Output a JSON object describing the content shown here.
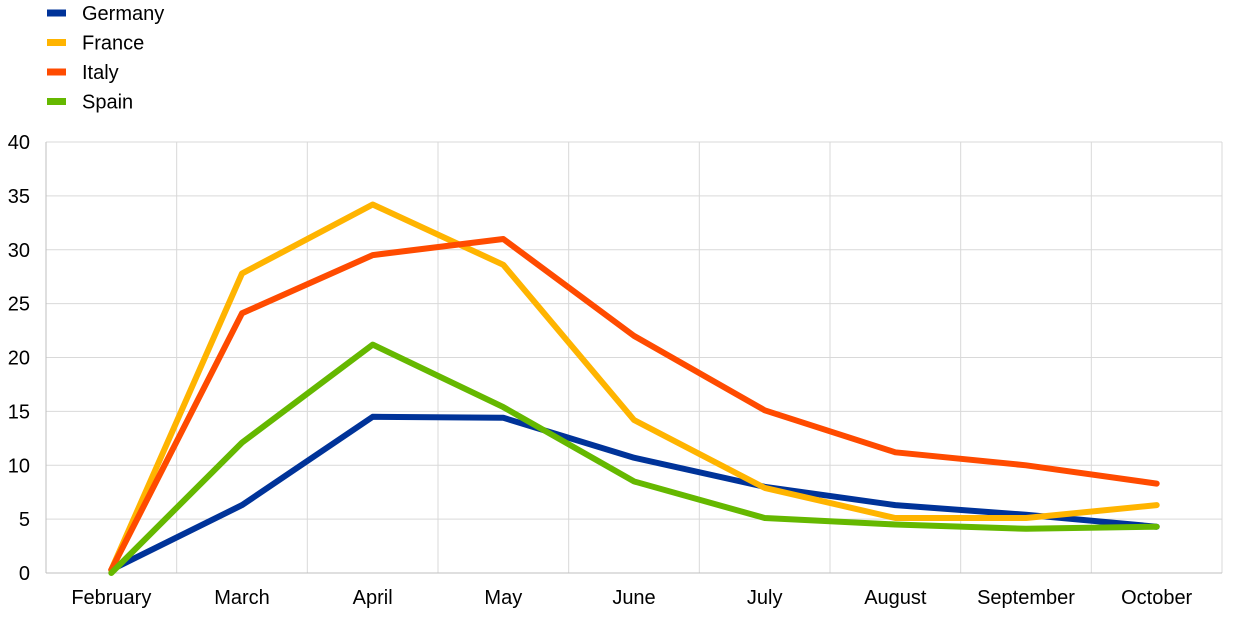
{
  "chart_data": {
    "type": "line",
    "categories": [
      "February",
      "March",
      "April",
      "May",
      "June",
      "July",
      "August",
      "September",
      "October"
    ],
    "series": [
      {
        "name": "Germany",
        "color": "#003399",
        "values": [
          0.3,
          6.3,
          14.5,
          14.4,
          10.7,
          8.0,
          6.3,
          5.4,
          4.3
        ]
      },
      {
        "name": "France",
        "color": "#FFB400",
        "values": [
          0.3,
          27.8,
          34.2,
          28.6,
          14.2,
          7.9,
          5.1,
          5.1,
          6.3
        ]
      },
      {
        "name": "Italy",
        "color": "#FF4B00",
        "values": [
          0.3,
          24.1,
          29.5,
          31.0,
          22.0,
          15.1,
          11.2,
          10.0,
          8.3
        ]
      },
      {
        "name": "Spain",
        "color": "#65B800",
        "values": [
          0.0,
          12.1,
          21.2,
          15.4,
          8.5,
          5.1,
          4.5,
          4.1,
          4.3
        ]
      }
    ],
    "title": "",
    "xlabel": "",
    "ylabel": "",
    "ylim": [
      0,
      40
    ],
    "yticks": [
      "0",
      "5",
      "10",
      "15",
      "20",
      "25",
      "30",
      "35",
      "40"
    ],
    "grid": true,
    "legend_position": "top-left"
  }
}
